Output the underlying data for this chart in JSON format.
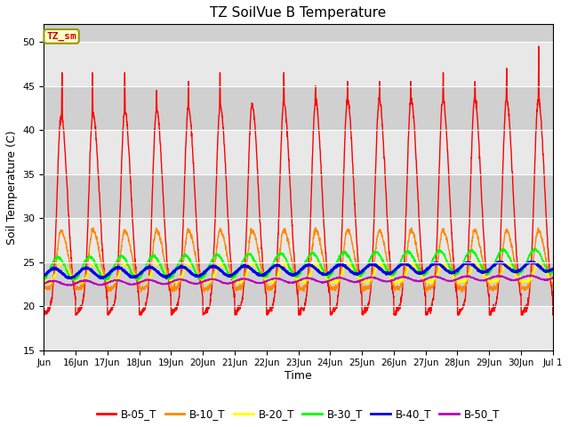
{
  "title": "TZ SoilVue B Temperature",
  "ylabel": "Soil Temperature (C)",
  "xlabel": "Time",
  "ylim": [
    15,
    52
  ],
  "yticks": [
    15,
    20,
    25,
    30,
    35,
    40,
    45,
    50
  ],
  "figsize": [
    6.4,
    4.8
  ],
  "dpi": 100,
  "background_color": "#ffffff",
  "plot_bg_color": "#e8e8e8",
  "band_light": "#e8e8e8",
  "band_dark": "#d0d0d0",
  "series": {
    "B-05_T": {
      "color": "#ff0000",
      "lw": 1.0
    },
    "B-10_T": {
      "color": "#ff8800",
      "lw": 1.0
    },
    "B-20_T": {
      "color": "#ffff00",
      "lw": 1.0
    },
    "B-30_T": {
      "color": "#00ff00",
      "lw": 1.2
    },
    "B-40_T": {
      "color": "#0000ee",
      "lw": 1.8
    },
    "B-50_T": {
      "color": "#bb00bb",
      "lw": 1.2
    }
  },
  "annotation_text": "TZ_sm",
  "annotation_color": "#cc0000",
  "annotation_bg": "#ffffcc",
  "annotation_border": "#999900",
  "n_days": 16,
  "seed": 42
}
